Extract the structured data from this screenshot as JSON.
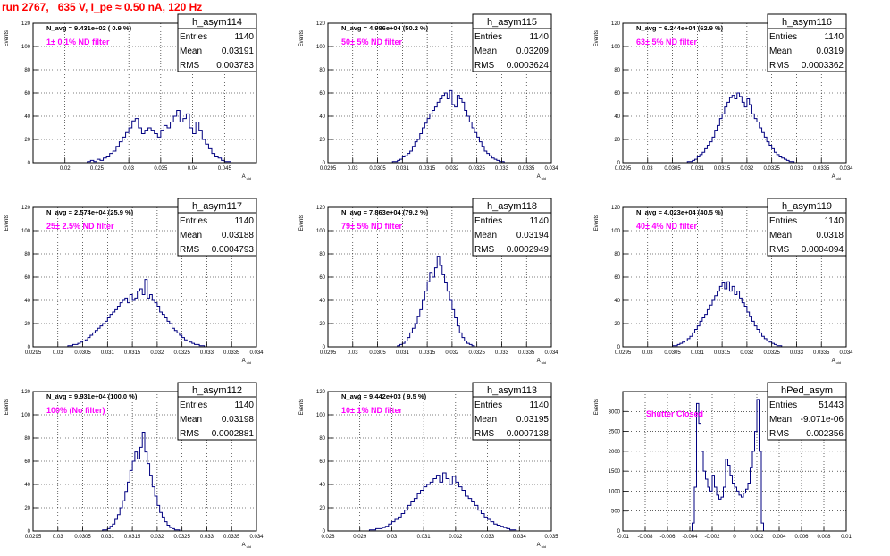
{
  "canvas_title": "run 2767,   635 V, I_pe ≈ 0.50 nA, 120 Hz",
  "colors": {
    "title": "#ff0000",
    "annotation": "#ff00ff",
    "histogram": "#000080",
    "grid": "#000000",
    "frame": "#000000"
  },
  "stats_labels": {
    "entries": "Entries",
    "mean": "Mean",
    "rms": "RMS"
  },
  "ylabel": "Events",
  "chart_data": [
    {
      "type": "histogram",
      "name": "h_asym114",
      "nav": "N_avg = 9.431e+02 ( 0.9 %)",
      "annotation": "1± 0.1% ND filter",
      "entries": "1140",
      "mean": "0.03191",
      "rms": "0.003783",
      "xlabel": "A_uid",
      "ylabel": "Events",
      "xlim": [
        0.015,
        0.05
      ],
      "ylim": [
        0,
        120
      ],
      "xticks": [
        0.02,
        0.025,
        0.03,
        0.035,
        0.04,
        0.045
      ],
      "xtick_labels": [
        "0.02",
        "0.025",
        "0.03",
        "0.035",
        "0.04",
        "0.045"
      ],
      "yticks": [
        0,
        20,
        40,
        60,
        80,
        100,
        120
      ],
      "ytick_labels": [
        "0",
        "20",
        "40",
        "60",
        "80",
        "100",
        "120"
      ],
      "bin_start": 0.023,
      "bin_width": 0.0005,
      "counts": [
        0,
        1,
        2,
        1,
        3,
        2,
        4,
        5,
        8,
        10,
        14,
        18,
        22,
        26,
        30,
        36,
        38,
        30,
        25,
        28,
        30,
        28,
        25,
        22,
        28,
        32,
        30,
        35,
        40,
        45,
        35,
        38,
        42,
        30,
        25,
        35,
        28,
        20,
        16,
        12,
        8,
        5,
        4,
        2,
        1,
        1
      ]
    },
    {
      "type": "histogram",
      "name": "h_asym115",
      "nav": "N_avg = 4.986e+04 (50.2 %)",
      "annotation": "50± 5% ND filter",
      "entries": "1140",
      "mean": "0.03209",
      "rms": "0.0003624",
      "xlabel": "A_uid",
      "ylabel": "Events",
      "xlim": [
        0.0295,
        0.034
      ],
      "ylim": [
        0,
        120
      ],
      "xticks": [
        0.0295,
        0.03,
        0.0305,
        0.031,
        0.0315,
        0.032,
        0.0325,
        0.033,
        0.0335,
        0.034
      ],
      "xtick_labels": [
        "0.0295",
        "0.03",
        "0.0305",
        "0.031",
        "0.0315",
        "0.032",
        "0.0325",
        "0.033",
        "0.0335",
        "0.034"
      ],
      "yticks": [
        0,
        20,
        40,
        60,
        80,
        100,
        120
      ],
      "ytick_labels": [
        "0",
        "20",
        "40",
        "60",
        "80",
        "100",
        "120"
      ],
      "bin_start": 0.0308,
      "bin_width": 5e-05,
      "counts": [
        1,
        1,
        2,
        3,
        5,
        6,
        8,
        10,
        14,
        18,
        20,
        25,
        30,
        34,
        38,
        42,
        45,
        48,
        52,
        55,
        58,
        60,
        55,
        62,
        50,
        48,
        58,
        55,
        52,
        45,
        40,
        35,
        30,
        26,
        22,
        18,
        14,
        10,
        8,
        6,
        4,
        3,
        2,
        1,
        1
      ]
    },
    {
      "type": "histogram",
      "name": "h_asym116",
      "nav": "N_avg = 6.244e+04 (62.9 %)",
      "annotation": "63± 5% ND filter",
      "entries": "1140",
      "mean": "0.0319",
      "rms": "0.0003362",
      "xlabel": "A_uid",
      "ylabel": "Events",
      "xlim": [
        0.0295,
        0.034
      ],
      "ylim": [
        0,
        120
      ],
      "xticks": [
        0.0295,
        0.03,
        0.0305,
        0.031,
        0.0315,
        0.032,
        0.0325,
        0.033,
        0.0335,
        0.034
      ],
      "xtick_labels": [
        "0.0295",
        "0.03",
        "0.0305",
        "0.031",
        "0.0315",
        "0.032",
        "0.0325",
        "0.033",
        "0.0335",
        "0.034"
      ],
      "yticks": [
        0,
        20,
        40,
        60,
        80,
        100,
        120
      ],
      "ytick_labels": [
        "0",
        "20",
        "40",
        "60",
        "80",
        "100",
        "120"
      ],
      "bin_start": 0.0308,
      "bin_width": 5e-05,
      "counts": [
        1,
        1,
        2,
        3,
        5,
        7,
        9,
        12,
        15,
        18,
        22,
        28,
        32,
        38,
        42,
        48,
        52,
        56,
        58,
        55,
        60,
        57,
        52,
        48,
        55,
        50,
        42,
        38,
        35,
        30,
        26,
        22,
        18,
        15,
        12,
        9,
        7,
        5,
        4,
        3,
        2,
        1,
        1
      ]
    },
    {
      "type": "histogram",
      "name": "h_asym117",
      "nav": "N_avg = 2.574e+04 (25.9 %)",
      "annotation": "25± 2.5% ND filter",
      "entries": "1140",
      "mean": "0.03188",
      "rms": "0.0004793",
      "xlabel": "A_uid",
      "ylabel": "Events",
      "xlim": [
        0.0295,
        0.034
      ],
      "ylim": [
        0,
        120
      ],
      "xticks": [
        0.0295,
        0.03,
        0.0305,
        0.031,
        0.0315,
        0.032,
        0.0325,
        0.033,
        0.0335,
        0.034
      ],
      "xtick_labels": [
        "0.0295",
        "0.03",
        "0.0305",
        "0.031",
        "0.0315",
        "0.032",
        "0.0325",
        "0.033",
        "0.0335",
        "0.034"
      ],
      "yticks": [
        0,
        20,
        40,
        60,
        80,
        100,
        120
      ],
      "ytick_labels": [
        "0",
        "20",
        "40",
        "60",
        "80",
        "100",
        "120"
      ],
      "bin_start": 0.0302,
      "bin_width": 5e-05,
      "counts": [
        1,
        1,
        2,
        2,
        3,
        4,
        5,
        6,
        8,
        10,
        12,
        14,
        16,
        18,
        20,
        22,
        25,
        28,
        30,
        32,
        35,
        38,
        40,
        42,
        38,
        45,
        40,
        42,
        48,
        50,
        45,
        58,
        42,
        45,
        40,
        38,
        35,
        30,
        28,
        25,
        22,
        20,
        16,
        14,
        12,
        10,
        8,
        6,
        5,
        4,
        3,
        2,
        2,
        1,
        1
      ]
    },
    {
      "type": "histogram",
      "name": "h_asym118",
      "nav": "N_avg = 7.863e+04 (79.2 %)",
      "annotation": "79± 5% ND filter",
      "entries": "1140",
      "mean": "0.03194",
      "rms": "0.0002949",
      "xlabel": "A_uid",
      "ylabel": "Events",
      "xlim": [
        0.0295,
        0.034
      ],
      "ylim": [
        0,
        120
      ],
      "xticks": [
        0.0295,
        0.03,
        0.0305,
        0.031,
        0.0315,
        0.032,
        0.0325,
        0.033,
        0.0335,
        0.034
      ],
      "xtick_labels": [
        "0.0295",
        "0.03",
        "0.0305",
        "0.031",
        "0.0315",
        "0.032",
        "0.0325",
        "0.033",
        "0.0335",
        "0.034"
      ],
      "yticks": [
        0,
        20,
        40,
        60,
        80,
        100,
        120
      ],
      "ytick_labels": [
        "0",
        "20",
        "40",
        "60",
        "80",
        "100",
        "120"
      ],
      "bin_start": 0.0309,
      "bin_width": 5e-05,
      "counts": [
        1,
        2,
        3,
        5,
        8,
        12,
        16,
        20,
        26,
        32,
        40,
        48,
        56,
        64,
        60,
        68,
        78,
        70,
        62,
        55,
        48,
        40,
        32,
        25,
        18,
        12,
        8,
        5,
        3,
        2,
        1
      ]
    },
    {
      "type": "histogram",
      "name": "h_asym119",
      "nav": "N_avg = 4.023e+04 (40.5 %)",
      "annotation": "40± 4% ND filter",
      "entries": "1140",
      "mean": "0.0318",
      "rms": "0.0004094",
      "xlabel": "A_uid",
      "ylabel": "Events",
      "xlim": [
        0.0295,
        0.034
      ],
      "ylim": [
        0,
        120
      ],
      "xticks": [
        0.0295,
        0.03,
        0.0305,
        0.031,
        0.0315,
        0.032,
        0.0325,
        0.033,
        0.0335,
        0.034
      ],
      "xtick_labels": [
        "0.0295",
        "0.03",
        "0.0305",
        "0.031",
        "0.0315",
        "0.032",
        "0.0325",
        "0.033",
        "0.0335",
        "0.034"
      ],
      "yticks": [
        0,
        20,
        40,
        60,
        80,
        100,
        120
      ],
      "ytick_labels": [
        "0",
        "20",
        "40",
        "60",
        "80",
        "100",
        "120"
      ],
      "bin_start": 0.0305,
      "bin_width": 5e-05,
      "counts": [
        1,
        1,
        2,
        3,
        4,
        5,
        7,
        9,
        12,
        15,
        18,
        22,
        25,
        28,
        32,
        36,
        40,
        44,
        48,
        52,
        55,
        50,
        56,
        48,
        52,
        45,
        48,
        42,
        38,
        35,
        30,
        26,
        22,
        18,
        15,
        12,
        9,
        7,
        5,
        4,
        3,
        2,
        1,
        1
      ]
    },
    {
      "type": "histogram",
      "name": "h_asym112",
      "nav": "N_avg = 9.931e+04 (100.0 %)",
      "annotation": "100% (No filter)",
      "entries": "1140",
      "mean": "0.03198",
      "rms": "0.0002881",
      "xlabel": "A_uid",
      "ylabel": "Events",
      "xlim": [
        0.0295,
        0.034
      ],
      "ylim": [
        0,
        120
      ],
      "xticks": [
        0.0295,
        0.03,
        0.0305,
        0.031,
        0.0315,
        0.032,
        0.0325,
        0.033,
        0.0335,
        0.034
      ],
      "xtick_labels": [
        "0.0295",
        "0.03",
        "0.0305",
        "0.031",
        "0.0315",
        "0.032",
        "0.0325",
        "0.033",
        "0.0335",
        "0.034"
      ],
      "yticks": [
        0,
        20,
        40,
        60,
        80,
        100,
        120
      ],
      "ytick_labels": [
        "0",
        "20",
        "40",
        "60",
        "80",
        "100",
        "120"
      ],
      "bin_start": 0.0309,
      "bin_width": 5e-05,
      "counts": [
        1,
        1,
        2,
        4,
        6,
        10,
        14,
        20,
        26,
        34,
        42,
        52,
        60,
        68,
        62,
        72,
        85,
        68,
        58,
        48,
        38,
        30,
        22,
        16,
        12,
        8,
        5,
        3,
        2,
        1,
        1
      ]
    },
    {
      "type": "histogram",
      "name": "h_asym113",
      "nav": "N_avg = 9.442e+03 ( 9.5 %)",
      "annotation": "10± 1% ND filter",
      "entries": "1140",
      "mean": "0.03195",
      "rms": "0.0007138",
      "xlabel": "A_uid",
      "ylabel": "Events",
      "xlim": [
        0.028,
        0.035
      ],
      "ylim": [
        0,
        120
      ],
      "xticks": [
        0.028,
        0.029,
        0.03,
        0.031,
        0.032,
        0.033,
        0.034,
        0.035
      ],
      "xtick_labels": [
        "0.028",
        "0.029",
        "0.03",
        "0.031",
        "0.032",
        "0.033",
        "0.034",
        "0.035"
      ],
      "yticks": [
        0,
        20,
        40,
        60,
        80,
        100,
        120
      ],
      "ytick_labels": [
        "0",
        "20",
        "40",
        "60",
        "80",
        "100",
        "120"
      ],
      "bin_start": 0.0293,
      "bin_width": 0.0001,
      "counts": [
        1,
        1,
        2,
        2,
        3,
        4,
        6,
        8,
        10,
        12,
        15,
        18,
        22,
        25,
        28,
        32,
        35,
        38,
        40,
        42,
        45,
        48,
        42,
        50,
        45,
        40,
        47,
        42,
        38,
        35,
        30,
        28,
        25,
        22,
        18,
        15,
        12,
        10,
        8,
        6,
        5,
        4,
        3,
        2,
        1,
        1
      ]
    },
    {
      "type": "histogram",
      "name": "hPed_asym",
      "annotation": "Shutter Closed",
      "entries": "51443",
      "mean": "-9.071e-06",
      "rms": "0.002356",
      "xlabel": "",
      "ylabel": "Events",
      "xlim": [
        -0.01,
        0.01
      ],
      "ylim": [
        0,
        3500
      ],
      "xticks": [
        -0.01,
        -0.008,
        -0.006,
        -0.004,
        -0.002,
        0,
        0.002,
        0.004,
        0.006,
        0.008,
        0.01
      ],
      "xtick_labels": [
        "-0.01",
        "-0.008",
        "-0.006",
        "-0.004",
        "-0.002",
        "0",
        "0.002",
        "0.004",
        "0.006",
        "0.008",
        "0.01"
      ],
      "yticks": [
        0,
        500,
        1000,
        1500,
        2000,
        2500,
        3000
      ],
      "ytick_labels": [
        "0",
        "500",
        "1000",
        "1500",
        "2000",
        "2500",
        "3000"
      ],
      "bin_start": -0.0038,
      "bin_width": 0.0002,
      "counts": [
        200,
        1100,
        3200,
        2700,
        2000,
        1500,
        1300,
        1100,
        1000,
        1400,
        1100,
        900,
        800,
        850,
        1100,
        1800,
        1650,
        1400,
        1200,
        1100,
        1000,
        900,
        850,
        950,
        1050,
        1200,
        1600,
        2000,
        2500,
        3300,
        2000,
        200
      ]
    }
  ]
}
